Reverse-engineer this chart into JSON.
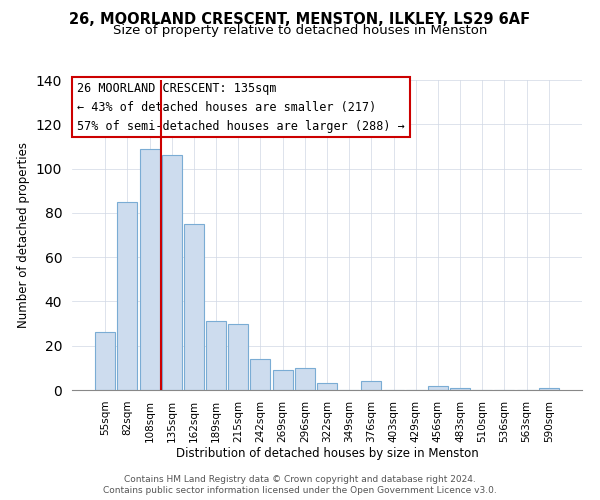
{
  "title": "26, MOORLAND CRESCENT, MENSTON, ILKLEY, LS29 6AF",
  "subtitle": "Size of property relative to detached houses in Menston",
  "xlabel": "Distribution of detached houses by size in Menston",
  "ylabel": "Number of detached properties",
  "bar_labels": [
    "55sqm",
    "82sqm",
    "108sqm",
    "135sqm",
    "162sqm",
    "189sqm",
    "215sqm",
    "242sqm",
    "269sqm",
    "296sqm",
    "322sqm",
    "349sqm",
    "376sqm",
    "403sqm",
    "429sqm",
    "456sqm",
    "483sqm",
    "510sqm",
    "536sqm",
    "563sqm",
    "590sqm"
  ],
  "bar_values": [
    26,
    85,
    109,
    106,
    75,
    31,
    30,
    14,
    9,
    10,
    3,
    0,
    4,
    0,
    0,
    2,
    1,
    0,
    0,
    0,
    1
  ],
  "bar_color": "#cddcee",
  "bar_edge_color": "#7aacd4",
  "vline_color": "#cc0000",
  "annotation_box_text": "26 MOORLAND CRESCENT: 135sqm\n← 43% of detached houses are smaller (217)\n57% of semi-detached houses are larger (288) →",
  "box_edge_color": "#cc0000",
  "ylim": [
    0,
    140
  ],
  "yticks": [
    0,
    20,
    40,
    60,
    80,
    100,
    120,
    140
  ],
  "footer_line1": "Contains HM Land Registry data © Crown copyright and database right 2024.",
  "footer_line2": "Contains public sector information licensed under the Open Government Licence v3.0.",
  "title_fontsize": 10.5,
  "subtitle_fontsize": 9.5,
  "tick_fontsize": 7.5,
  "ylabel_fontsize": 8.5,
  "xlabel_fontsize": 8.5,
  "annotation_fontsize": 8.5,
  "footer_fontsize": 6.5
}
